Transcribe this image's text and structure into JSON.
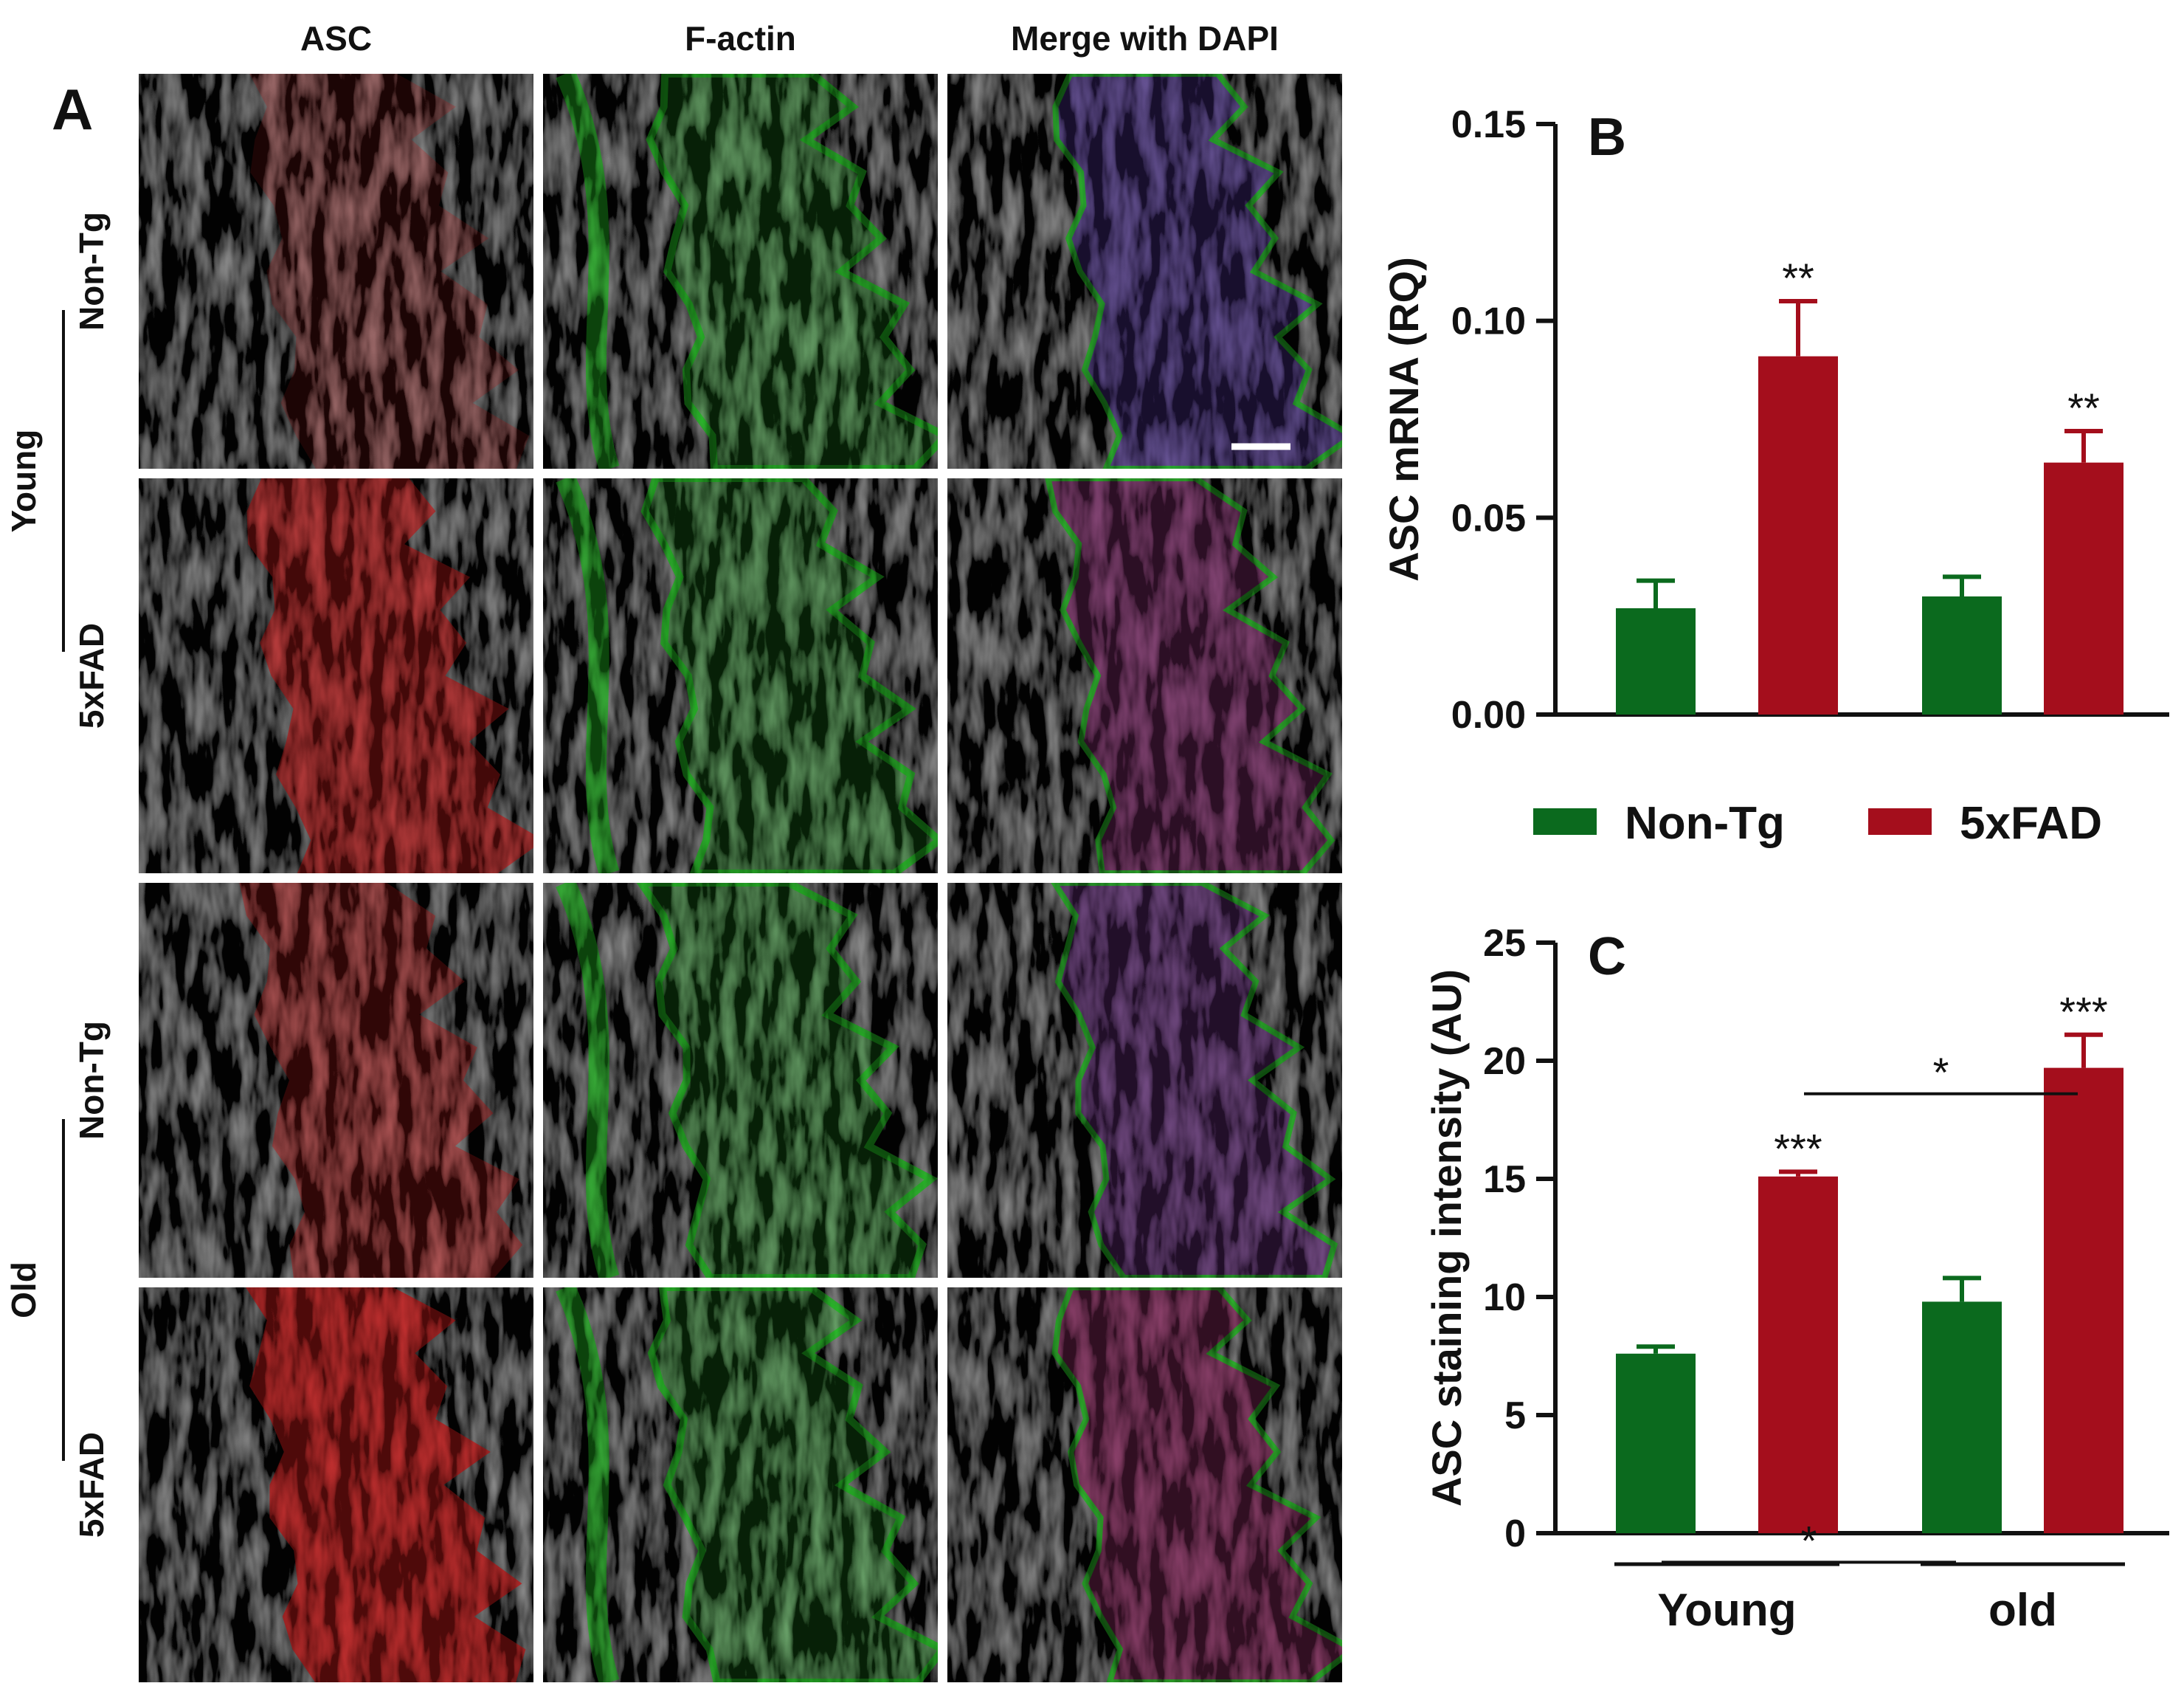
{
  "panels": {
    "A": {
      "letter": "A"
    },
    "B": {
      "letter": "B"
    },
    "C": {
      "letter": "C"
    }
  },
  "micrograph": {
    "column_headers": [
      "ASC",
      "F-actin",
      "Merge with DAPI"
    ],
    "group_labels": [
      "Young",
      "Old"
    ],
    "row_labels": [
      "Non-Tg",
      "5xFAD",
      "Non-Tg",
      "5xFAD"
    ],
    "channel_colors": {
      "asc": "#d81c1c",
      "factin": "#22c422",
      "dapi": "#2a3fd0",
      "background": "#050505"
    },
    "asc_intensity": [
      0.35,
      0.85,
      0.6,
      1.0
    ]
  },
  "legend": {
    "items": [
      {
        "label": "Non-Tg",
        "color": "#0b6a1e"
      },
      {
        "label": "5xFAD",
        "color": "#a40e1c"
      }
    ]
  },
  "chart_data": [
    {
      "type": "bar",
      "panel": "B",
      "ylabel": "ASC mRNA (RQ)",
      "ylim": [
        0,
        0.15
      ],
      "yticks": [
        "0.00",
        "0.05",
        "0.10",
        "0.15"
      ],
      "ytick_values": [
        0,
        0.05,
        0.1,
        0.15
      ],
      "categories": [
        "Non-Tg",
        "5xFAD",
        "Non-Tg",
        "5xFAD"
      ],
      "values": [
        0.027,
        0.091,
        0.03,
        0.064
      ],
      "errors": [
        0.007,
        0.014,
        0.005,
        0.008
      ],
      "colors": [
        "#0b6a1e",
        "#a40e1c",
        "#0b6a1e",
        "#a40e1c"
      ],
      "significance": [
        "",
        "**",
        "",
        "**"
      ]
    },
    {
      "type": "bar",
      "panel": "C",
      "ylabel": "ASC staining intensity (AU)",
      "ylim": [
        0,
        25
      ],
      "yticks": [
        "0",
        "5",
        "10",
        "15",
        "20",
        "25"
      ],
      "ytick_values": [
        0,
        5,
        10,
        15,
        20,
        25
      ],
      "categories": [
        "Non-Tg",
        "5xFAD",
        "Non-Tg",
        "5xFAD"
      ],
      "values": [
        7.6,
        15.1,
        9.8,
        19.7
      ],
      "errors": [
        0.3,
        0.2,
        1.0,
        1.4
      ],
      "colors": [
        "#0b6a1e",
        "#a40e1c",
        "#0b6a1e",
        "#a40e1c"
      ],
      "significance": [
        "",
        "***",
        "",
        "***"
      ],
      "comparisons": [
        {
          "from": 0,
          "to": 2,
          "label": "*"
        },
        {
          "from": 1,
          "to": 3,
          "label": "*"
        }
      ],
      "groups": [
        {
          "label": "Young",
          "bars": [
            0,
            1
          ]
        },
        {
          "label": "old",
          "bars": [
            2,
            3
          ]
        }
      ]
    }
  ]
}
